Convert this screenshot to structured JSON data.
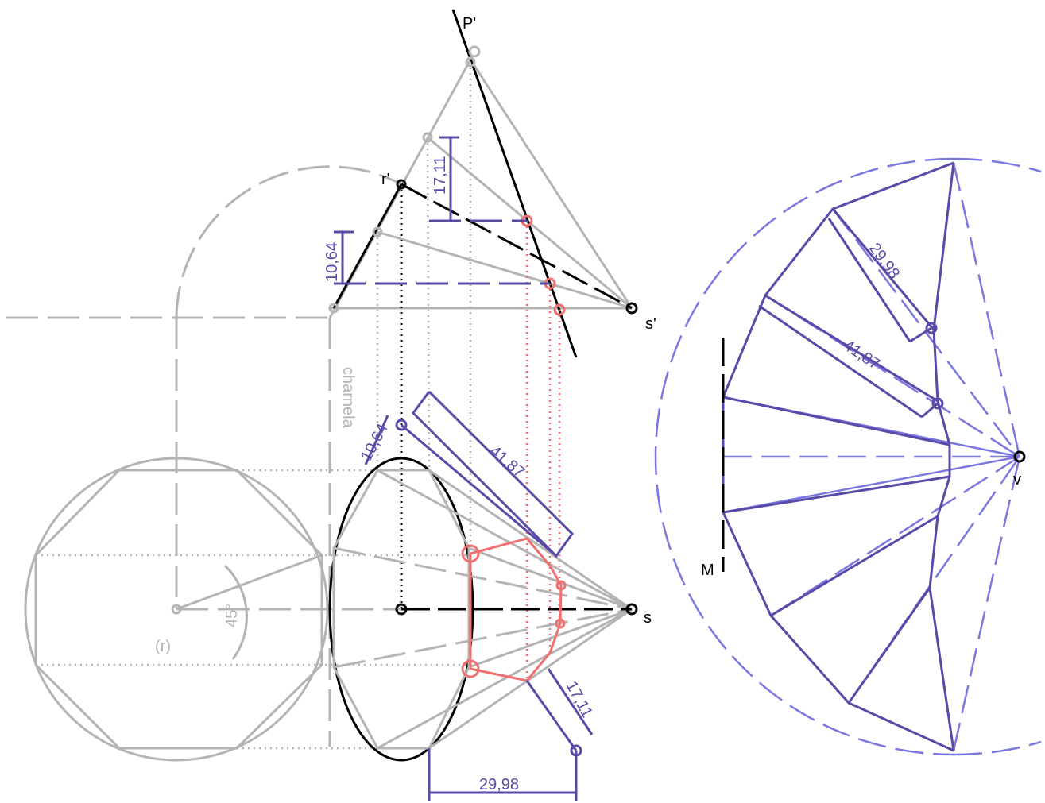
{
  "labels": {
    "p_prime": "P'",
    "r_prime": "r'",
    "s_prime": "s'",
    "s": "s",
    "v": "v",
    "m": "M",
    "r": "(r)",
    "hinge": "charnela",
    "angle": "45°"
  },
  "dimensions": [
    "17,11",
    "10,64",
    "41,87",
    "29,98"
  ]
}
